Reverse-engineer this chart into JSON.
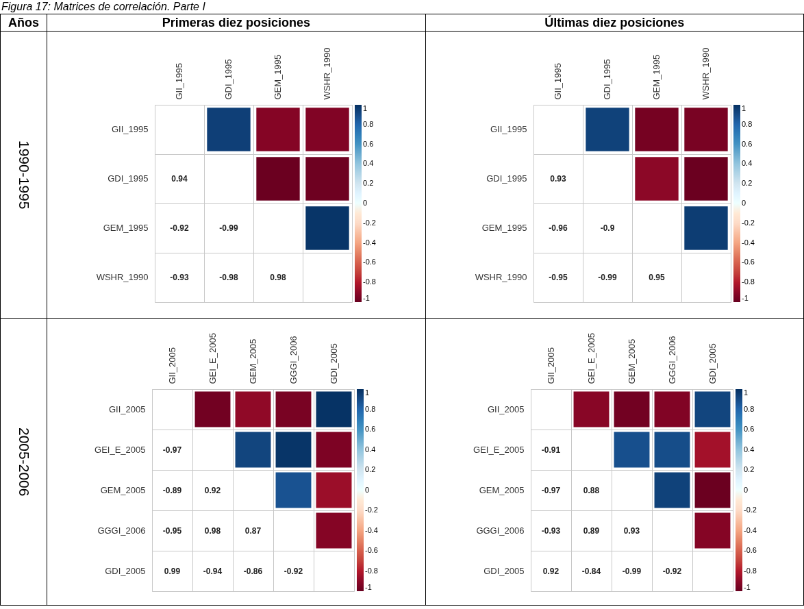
{
  "chart_data": [
    {
      "type": "heatmap",
      "title": "Primeras diez posiciones",
      "ylabel": "1990-1995",
      "annotations": [
        "Figura 17: Matrices de correlación. Parte I",
        "Años"
      ],
      "grid": true,
      "categories": [
        "GII_1995",
        "GDI_1995",
        "GEM_1995",
        "WSHR_1990"
      ],
      "y_categories": [
        "GII_1995",
        "GDI_1995",
        "GEM_1995",
        "WSHR_1990"
      ],
      "cells": [
        [
          null,
          0.94,
          -0.92,
          -0.93
        ],
        [
          null,
          null,
          -0.99,
          -0.98
        ],
        [
          null,
          null,
          null,
          0.98
        ],
        [
          null,
          null,
          null,
          null
        ]
      ],
      "cell_labels": [
        [
          null,
          null,
          null,
          null
        ],
        [
          "0.94",
          null,
          null,
          null
        ],
        [
          "-0.92",
          "-0.99",
          null,
          null
        ],
        [
          "-0.93",
          "-0.98",
          "0.98",
          null
        ]
      ],
      "clim": [
        -1,
        1
      ],
      "cticks": [
        -1,
        -0.8,
        -0.6,
        -0.4,
        -0.2,
        0,
        0.2,
        0.4,
        0.6,
        0.8,
        1
      ]
    },
    {
      "type": "heatmap",
      "title": "Últimas diez posiciones",
      "grid": true,
      "categories": [
        "GII_1995",
        "GDI_1995",
        "GEM_1995",
        "WSHR_1990"
      ],
      "y_categories": [
        "GII_1995",
        "GDI_1995",
        "GEM_1995",
        "WSHR_1990"
      ],
      "cells": [
        [
          null,
          0.93,
          -0.96,
          -0.95
        ],
        [
          null,
          null,
          -0.9,
          -0.99
        ],
        [
          null,
          null,
          null,
          0.95
        ],
        [
          null,
          null,
          null,
          null
        ]
      ],
      "cell_labels": [
        [
          null,
          null,
          null,
          null
        ],
        [
          "0.93",
          null,
          null,
          null
        ],
        [
          "-0.96",
          "-0.9",
          null,
          null
        ],
        [
          "-0.95",
          "-0.99",
          "0.95",
          null
        ]
      ],
      "clim": [
        -1,
        1
      ],
      "cticks": [
        -1,
        -0.8,
        -0.6,
        -0.4,
        -0.2,
        0,
        0.2,
        0.4,
        0.6,
        0.8,
        1
      ]
    },
    {
      "type": "heatmap",
      "ylabel": "2005-2006",
      "grid": true,
      "categories": [
        "GII_2005",
        "GEI_E_2005",
        "GEM_2005",
        "GGGI_2006",
        "GDI_2005"
      ],
      "y_categories": [
        "GII_2005",
        "GEI_E_2005",
        "GEM_2005",
        "GGGI_2006",
        "GDI_2005"
      ],
      "cells": [
        [
          null,
          -0.97,
          -0.89,
          -0.95,
          0.99
        ],
        [
          null,
          null,
          0.92,
          0.98,
          -0.94
        ],
        [
          null,
          null,
          null,
          0.87,
          -0.86
        ],
        [
          null,
          null,
          null,
          null,
          -0.92
        ],
        [
          null,
          null,
          null,
          null,
          null
        ]
      ],
      "cell_labels": [
        [
          null,
          null,
          null,
          null,
          null
        ],
        [
          "-0.97",
          null,
          null,
          null,
          null
        ],
        [
          "-0.89",
          "0.92",
          null,
          null,
          null
        ],
        [
          "-0.95",
          "0.98",
          "0.87",
          null,
          null
        ],
        [
          "0.99",
          "-0.94",
          "-0.86",
          "-0.92",
          null
        ]
      ],
      "clim": [
        -1,
        1
      ],
      "cticks": [
        -1,
        -0.8,
        -0.6,
        -0.4,
        -0.2,
        0,
        0.2,
        0.4,
        0.6,
        0.8,
        1
      ]
    },
    {
      "type": "heatmap",
      "grid": true,
      "categories": [
        "GII_2005",
        "GEI_E_2005",
        "GEM_2005",
        "GGGI_2006",
        "GDI_2005"
      ],
      "y_categories": [
        "GII_2005",
        "GEI_E_2005",
        "GEM_2005",
        "GGGI_2006",
        "GDI_2005"
      ],
      "cells": [
        [
          null,
          -0.91,
          -0.97,
          -0.93,
          0.92
        ],
        [
          null,
          null,
          0.88,
          0.89,
          -0.84
        ],
        [
          null,
          null,
          null,
          0.93,
          -0.99
        ],
        [
          null,
          null,
          null,
          null,
          -0.92
        ],
        [
          null,
          null,
          null,
          null,
          null
        ]
      ],
      "cell_labels": [
        [
          null,
          null,
          null,
          null,
          null
        ],
        [
          "-0.91",
          null,
          null,
          null,
          null
        ],
        [
          "-0.97",
          "0.88",
          null,
          null,
          null
        ],
        [
          "-0.93",
          "0.89",
          "0.93",
          null,
          null
        ],
        [
          "0.92",
          "-0.84",
          "-0.99",
          "-0.92",
          null
        ]
      ],
      "clim": [
        -1,
        1
      ],
      "cticks": [
        -1,
        -0.8,
        -0.6,
        -0.4,
        -0.2,
        0,
        0.2,
        0.4,
        0.6,
        0.8,
        1
      ]
    }
  ]
}
